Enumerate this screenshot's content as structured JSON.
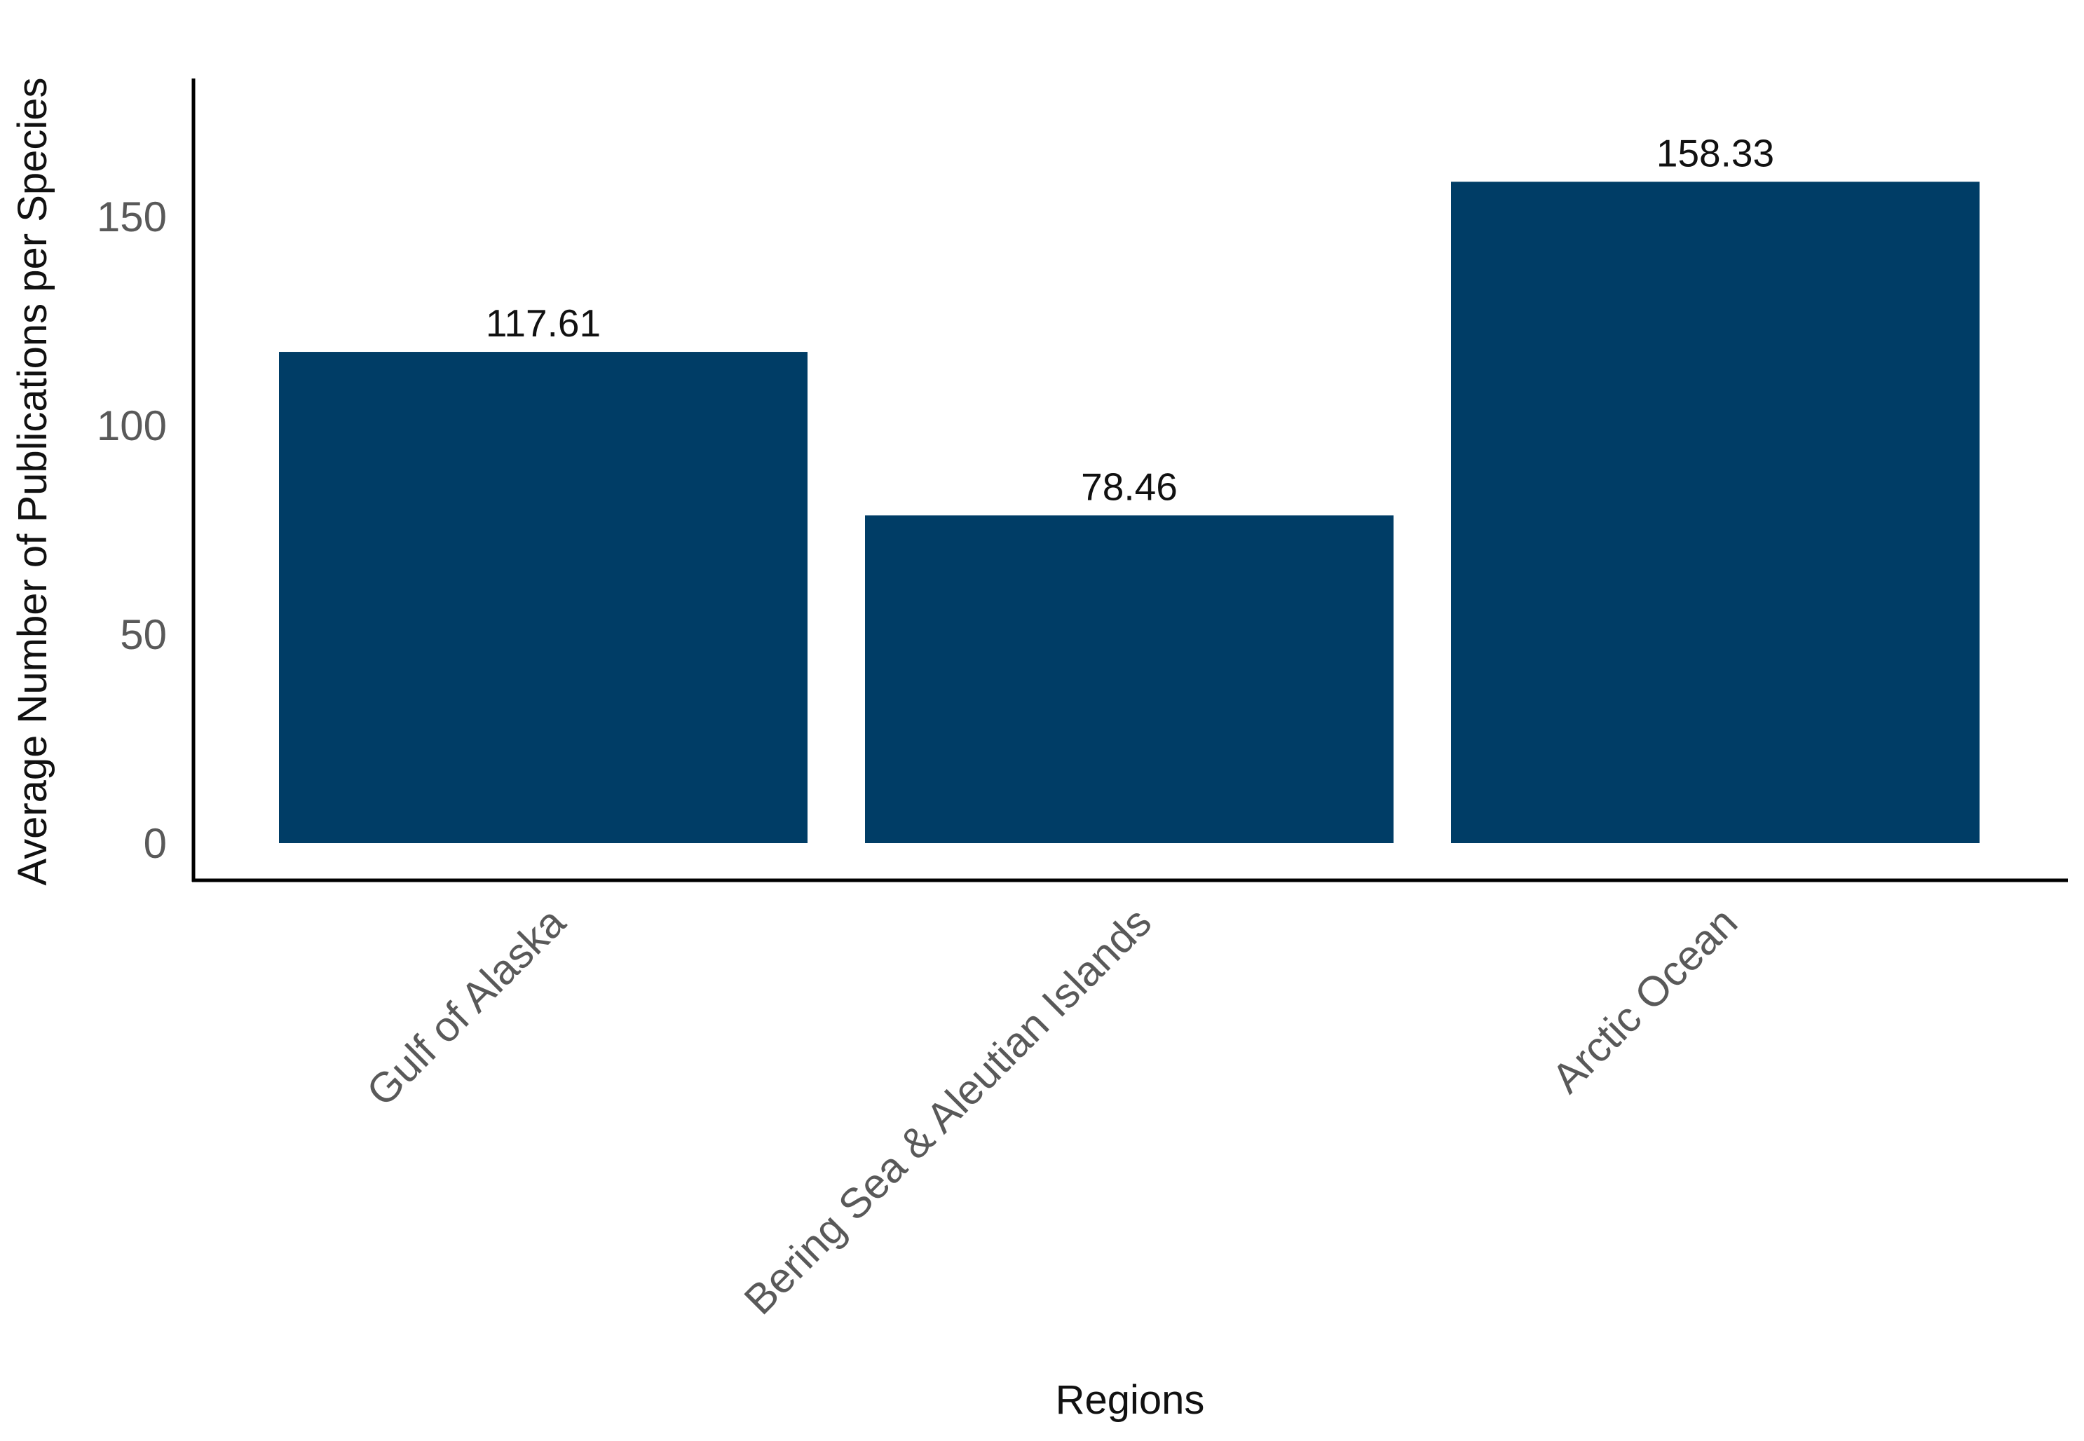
{
  "chart_data": {
    "type": "bar",
    "categories": [
      "Gulf of Alaska",
      "Bering Sea & Aleutian Islands",
      "Arctic Ocean"
    ],
    "values": [
      117.61,
      78.46,
      158.33
    ],
    "value_labels": [
      "117.61",
      "78.46",
      "158.33"
    ],
    "title": "",
    "xlabel": "Regions",
    "ylabel": "Average Number of Publications per Species",
    "ylim": [
      0,
      175
    ],
    "yticks": [
      0,
      50,
      100,
      150
    ],
    "ytick_labels": [
      "0",
      "50",
      "100",
      "150"
    ],
    "grid": false,
    "legend": "none",
    "bar_color": "#003d66"
  }
}
